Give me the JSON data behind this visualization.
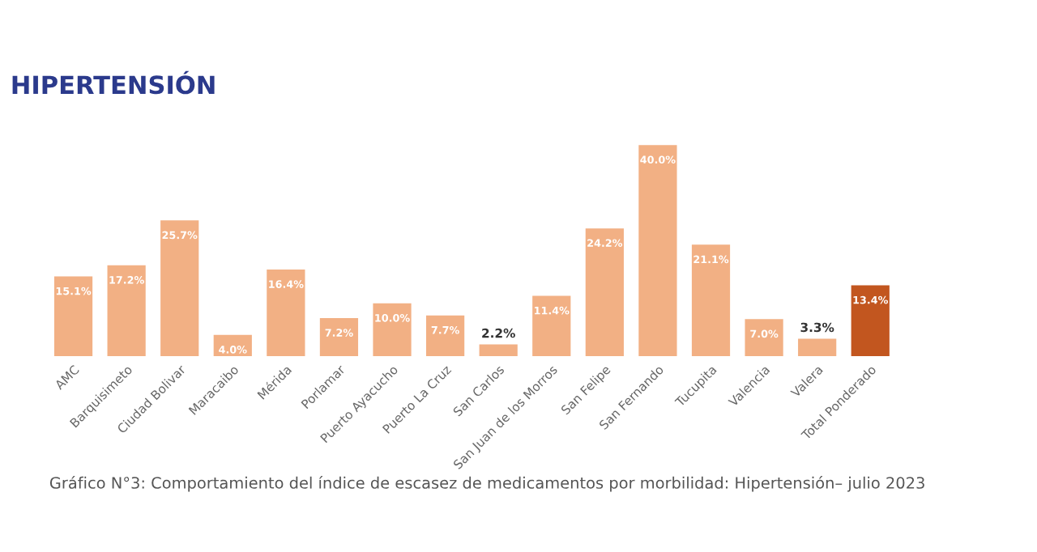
{
  "chart_data": {
    "type": "bar",
    "title": "HIPERTENSIÓN",
    "categories": [
      "AMC",
      "Barquisimeto",
      "Ciudad Bolivar",
      "Maracaibo",
      "Mérida",
      "Porlamar",
      "Puerto Ayacucho",
      "Puerto La Cruz",
      "San Carlos",
      "San Juan de los Morros",
      "San Felipe",
      "San Fernando",
      "Tucupita",
      "Valencia",
      "Valera",
      "Total Ponderado"
    ],
    "values": [
      15.1,
      17.2,
      25.7,
      4.0,
      16.4,
      7.2,
      10.0,
      7.7,
      2.2,
      11.4,
      24.2,
      40.0,
      21.1,
      7.0,
      3.3,
      13.4
    ],
    "value_labels": [
      "15.1%",
      "17.2%",
      "25.7%",
      "4.0%",
      "16.4%",
      "7.2%",
      "10.0%",
      "7.7%",
      "2.2%",
      "11.4%",
      "24.2%",
      "40.0%",
      "21.1%",
      "7.0%",
      "3.3%",
      "13.4%"
    ],
    "colors": [
      "#f2b084",
      "#f2b084",
      "#f2b084",
      "#f2b084",
      "#f2b084",
      "#f2b084",
      "#f2b084",
      "#f2b084",
      "#f2b084",
      "#f2b084",
      "#f2b084",
      "#f2b084",
      "#f2b084",
      "#f2b084",
      "#f2b084",
      "#c2561f"
    ],
    "annotations": [
      "Gráfico N°3: Comportamiento del índice de escasez de medicamentos por morbilidad: Hipertensión– julio 2023"
    ],
    "grid": false,
    "legend": false
  }
}
